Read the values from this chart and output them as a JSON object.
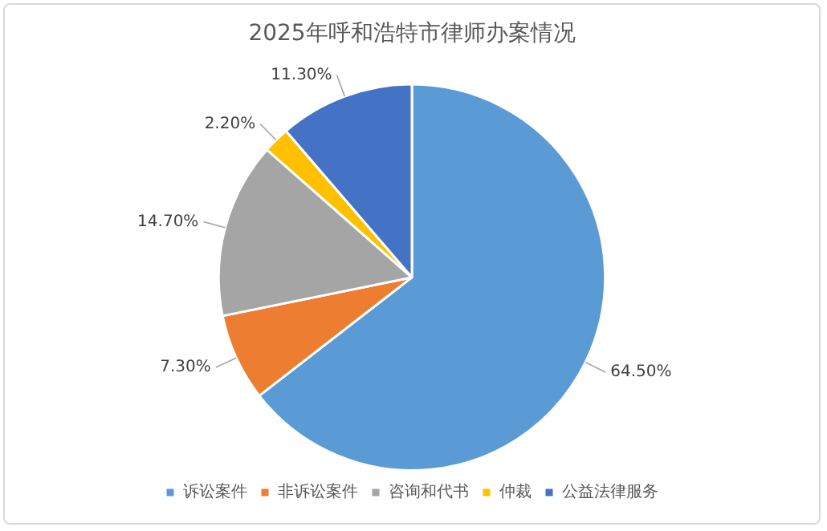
{
  "chart_data": {
    "type": "pie",
    "title": "2025年呼和浩特市律师办案情况",
    "categories": [
      "诉讼案件",
      "非诉讼案件",
      "咨询和代书",
      "仲裁",
      "公益法律服务"
    ],
    "values": [
      64.5,
      7.3,
      14.7,
      2.2,
      11.3
    ],
    "value_labels": [
      "64.50%",
      "7.30%",
      "14.70%",
      "2.20%",
      "11.30%"
    ],
    "colors": [
      "#5b9bd5",
      "#ed7d31",
      "#a5a5a5",
      "#ffc000",
      "#4472c4"
    ],
    "legend": "bottom"
  }
}
